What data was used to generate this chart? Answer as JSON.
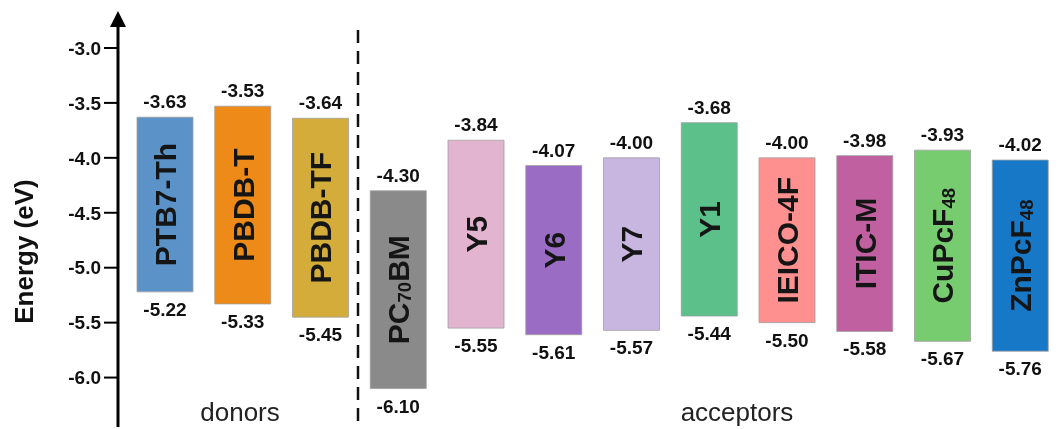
{
  "chart_data": {
    "type": "bar",
    "categories": [
      "PTB7-Th",
      "PBDB-T",
      "PBDB-TF",
      "PC$_{70}$BM",
      "Y5",
      "Y6",
      "Y7",
      "Y1",
      "IEICO-4F",
      "ITIC-M",
      "CuPcF$_{48}$",
      "ZnPcF$_{48}$"
    ],
    "base": [
      -5.22,
      -5.33,
      -5.45,
      -6.1,
      -5.55,
      -5.61,
      -5.57,
      -5.44,
      -5.5,
      -5.58,
      -5.67,
      -5.76
    ],
    "values": [
      1.59,
      1.8,
      1.81,
      1.8,
      1.71,
      1.54,
      1.57,
      1.76,
      1.5,
      1.6,
      1.74,
      1.74
    ],
    "colors": [
      "#5b93c9",
      "#ee8a17",
      "#d4ac3a",
      "#8a8a8a",
      "#e2b4d0",
      "#9a6cc4",
      "#c8b6e0",
      "#5cc08a",
      "#ff9090",
      "#c060a0",
      "#78cc70",
      "#1878c8"
    ],
    "ylabel": "Energy (eV)",
    "ylim": [
      -6.45,
      -2.8
    ],
    "yticks": [
      {
        "value": -3,
        "label": "-3.0"
      },
      {
        "value": -3.5,
        "label": "-3.5"
      },
      {
        "value": -4,
        "label": "-4.0"
      },
      {
        "value": -4.5,
        "label": "-4.5"
      },
      {
        "value": -5,
        "label": "-5.0"
      },
      {
        "value": -5.5,
        "label": "-5.5"
      },
      {
        "value": -6,
        "label": "-6.0"
      }
    ],
    "tick_labels": "y",
    "annotations": [
      {
        "text": "-3.63",
        "x": "PTB7-Th",
        "y": -3.63
      },
      {
        "text": "-5.22",
        "x": "PTB7-Th",
        "y": -5.22
      },
      {
        "text": "-3.53",
        "x": "PBDB-T",
        "y": -3.53
      },
      {
        "text": "-5.33",
        "x": "PBDB-T",
        "y": -5.33
      },
      {
        "text": "-3.64",
        "x": "PBDB-TF",
        "y": -3.64
      },
      {
        "text": "-5.45",
        "x": "PBDB-TF",
        "y": -5.45
      },
      {
        "text": "-4.30",
        "x": "PC$_{70}$BM",
        "y": -4.3
      },
      {
        "text": "-6.10",
        "x": "PC$_{70}$BM",
        "y": -6.1
      },
      {
        "text": "-3.84",
        "x": "Y5",
        "y": -3.84
      },
      {
        "text": "-5.55",
        "x": "Y5",
        "y": -5.55
      },
      {
        "text": "-4.07",
        "x": "Y6",
        "y": -4.07
      },
      {
        "text": "-5.61",
        "x": "Y6",
        "y": -5.61
      },
      {
        "text": "-4.00",
        "x": "Y7",
        "y": -4
      },
      {
        "text": "-5.57",
        "x": "Y7",
        "y": -5.57
      },
      {
        "text": "-3.68",
        "x": "Y1",
        "y": -3.68
      },
      {
        "text": "-5.44",
        "x": "Y1",
        "y": -5.44
      },
      {
        "text": "-4.00",
        "x": "IEICO-4F",
        "y": -4
      },
      {
        "text": "-5.50",
        "x": "IEICO-4F",
        "y": -5.5
      },
      {
        "text": "-3.98",
        "x": "ITIC-M",
        "y": -3.98
      },
      {
        "text": "-5.58",
        "x": "ITIC-M",
        "y": -5.58
      },
      {
        "text": "-3.93",
        "x": "CuPcF$_{48}$",
        "y": -3.93
      },
      {
        "text": "-5.67",
        "x": "CuPcF$_{48}$",
        "y": -5.67
      },
      {
        "text": "-4.02",
        "x": "ZnPcF$_{48}$",
        "y": -4.02
      },
      {
        "text": "-5.76",
        "x": "ZnPcF$_{48}$",
        "y": -5.76
      },
      "donors",
      "acceptors"
    ]
  }
}
